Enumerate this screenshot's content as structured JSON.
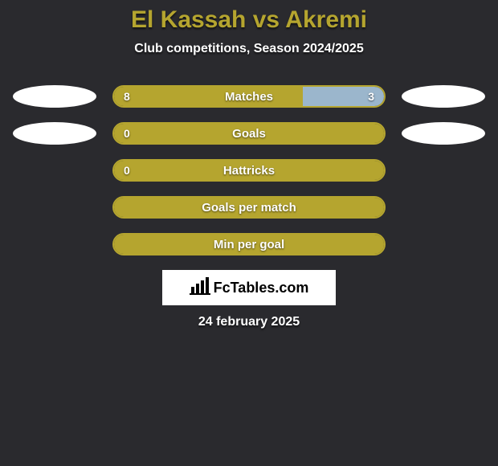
{
  "title": "El Kassah vs Akremi",
  "subtitle": "Club competitions, Season 2024/2025",
  "date": "24 february 2025",
  "logo": {
    "text": "FcTables.com"
  },
  "colors": {
    "primary": "#b5a52f",
    "secondary": "#9bb6cc",
    "ellipse": "#ffffff",
    "background": "#2a2a2e"
  },
  "rows": [
    {
      "label": "Matches",
      "left_value": "8",
      "right_value": "3",
      "left_pct": 70,
      "right_pct": 30,
      "left_color": "#b5a52f",
      "right_color": "#9bb6cc",
      "border_color": "#b5a52f",
      "show_left_ellipse": true,
      "show_right_ellipse": true
    },
    {
      "label": "Goals",
      "left_value": "0",
      "right_value": "",
      "left_pct": 100,
      "right_pct": 0,
      "left_color": "#b5a52f",
      "right_color": "#9bb6cc",
      "border_color": "#b5a52f",
      "show_left_ellipse": true,
      "show_right_ellipse": true
    },
    {
      "label": "Hattricks",
      "left_value": "0",
      "right_value": "",
      "left_pct": 100,
      "right_pct": 0,
      "left_color": "#b5a52f",
      "right_color": "#9bb6cc",
      "border_color": "#b5a52f",
      "show_left_ellipse": false,
      "show_right_ellipse": false
    },
    {
      "label": "Goals per match",
      "left_value": "",
      "right_value": "",
      "left_pct": 100,
      "right_pct": 0,
      "left_color": "#b5a52f",
      "right_color": "#9bb6cc",
      "border_color": "#b5a52f",
      "show_left_ellipse": false,
      "show_right_ellipse": false
    },
    {
      "label": "Min per goal",
      "left_value": "",
      "right_value": "",
      "left_pct": 100,
      "right_pct": 0,
      "left_color": "#b5a52f",
      "right_color": "#9bb6cc",
      "border_color": "#b5a52f",
      "show_left_ellipse": false,
      "show_right_ellipse": false
    }
  ]
}
